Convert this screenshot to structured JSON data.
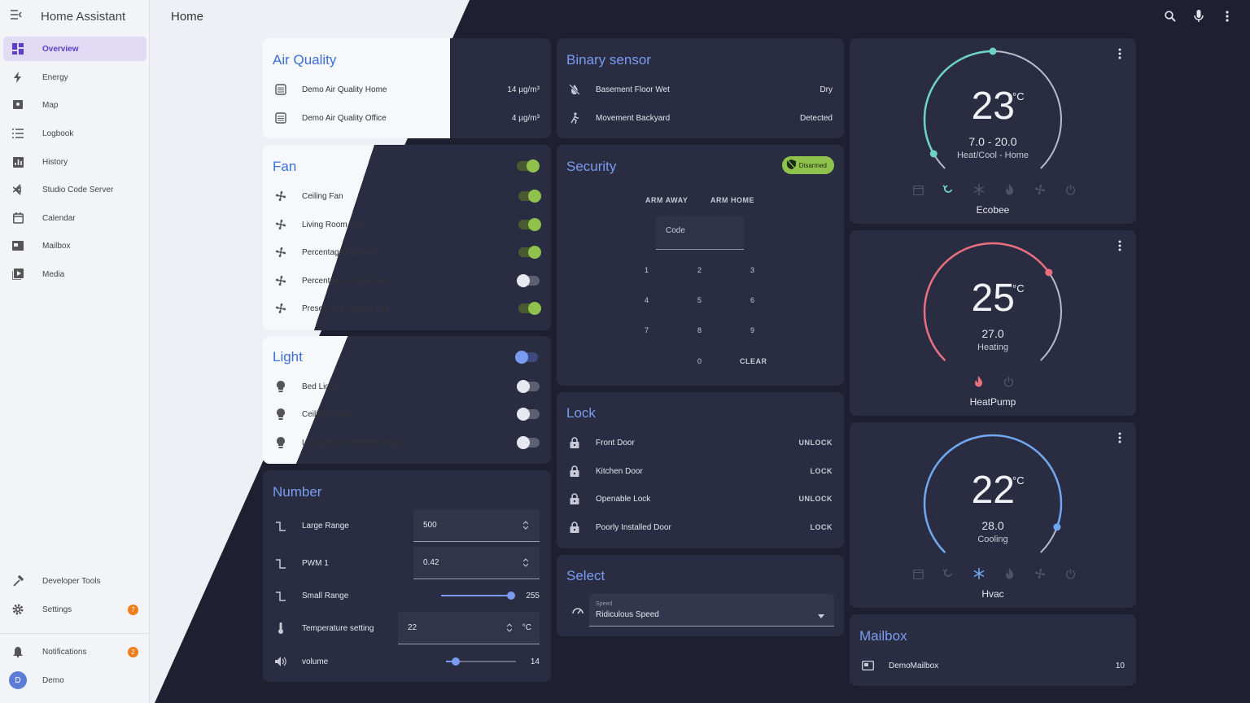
{
  "app": {
    "title": "Home Assistant",
    "page_title": "Home"
  },
  "sidebar": {
    "items": [
      {
        "label": "Overview",
        "icon": "overview-icon"
      },
      {
        "label": "Energy",
        "icon": "energy-icon"
      },
      {
        "label": "Map",
        "icon": "map-icon"
      },
      {
        "label": "Logbook",
        "icon": "logbook-icon"
      },
      {
        "label": "History",
        "icon": "history-icon"
      },
      {
        "label": "Studio Code Server",
        "icon": "vscode-icon"
      },
      {
        "label": "Calendar",
        "icon": "calendar-icon"
      },
      {
        "label": "Mailbox",
        "icon": "mailbox-icon"
      },
      {
        "label": "Media",
        "icon": "media-icon"
      }
    ],
    "developer_tools": "Developer Tools",
    "settings": {
      "label": "Settings",
      "badge": "7"
    },
    "notifications": {
      "label": "Notifications",
      "badge": "2"
    },
    "user": {
      "label": "Demo",
      "initial": "D"
    }
  },
  "air_quality": {
    "title": "Air Quality",
    "rows": [
      {
        "name": "Demo Air Quality Home",
        "value": "14 µg/m³"
      },
      {
        "name": "Demo Air Quality Office",
        "value": "4 µg/m³"
      }
    ]
  },
  "fan": {
    "title": "Fan",
    "rows": [
      {
        "name": "Ceiling Fan",
        "on": true
      },
      {
        "name": "Living Room Fan",
        "on": true
      },
      {
        "name": "Percentage Full Fan",
        "on": true
      },
      {
        "name": "Percentage Limited Fan",
        "on": false
      },
      {
        "name": "Preset Only Limited Fan",
        "on": true
      }
    ]
  },
  "light": {
    "title": "Light",
    "rows": [
      {
        "name": "Bed Light",
        "on": false
      },
      {
        "name": "Ceiling Lights",
        "on": false
      },
      {
        "name": "Living Room RGBWW Lights",
        "on": false
      }
    ]
  },
  "number": {
    "title": "Number",
    "rows": [
      {
        "name": "Large Range",
        "value": "500"
      },
      {
        "name": "PWM 1",
        "value": "0.42"
      },
      {
        "name": "Small Range",
        "value": "255",
        "level": 1.0
      },
      {
        "name": "Temperature setting",
        "value": "22",
        "unit": "°C"
      },
      {
        "name": "volume",
        "value": "14",
        "level": 0.14
      }
    ]
  },
  "binary_sensor": {
    "title": "Binary sensor",
    "rows": [
      {
        "name": "Basement Floor Wet",
        "value": "Dry"
      },
      {
        "name": "Movement Backyard",
        "value": "Detected"
      }
    ]
  },
  "security": {
    "title": "Security",
    "status": "Disarmed",
    "arm_away": "ARM AWAY",
    "arm_home": "ARM HOME",
    "code_placeholder": "Code",
    "keys": [
      "1",
      "2",
      "3",
      "4",
      "5",
      "6",
      "7",
      "8",
      "9",
      "0"
    ],
    "clear": "CLEAR"
  },
  "lock": {
    "title": "Lock",
    "rows": [
      {
        "name": "Front Door",
        "action": "UNLOCK"
      },
      {
        "name": "Kitchen Door",
        "action": "LOCK"
      },
      {
        "name": "Openable Lock",
        "action": "UNLOCK"
      },
      {
        "name": "Poorly Installed Door",
        "action": "LOCK"
      }
    ]
  },
  "select": {
    "title": "Select",
    "label": "Speed",
    "value": "Ridiculous Speed"
  },
  "thermostats": [
    {
      "name": "Ecobee",
      "temp": "23",
      "unit": "°C",
      "range": "7.0 - 20.0",
      "mode": "Heat/Cool - Home",
      "accent": "#6fd2c8"
    },
    {
      "name": "HeatPump",
      "temp": "25",
      "unit": "°C",
      "range": "27.0",
      "mode": "Heating",
      "accent": "#e8707e"
    },
    {
      "name": "Hvac",
      "temp": "22",
      "unit": "°C",
      "range": "28.0",
      "mode": "Cooling",
      "accent": "#6fa8f0"
    }
  ],
  "mailbox": {
    "title": "Mailbox",
    "rows": [
      {
        "name": "DemoMailbox",
        "value": "10"
      }
    ]
  },
  "colors": {
    "accent": "#7a9cf0",
    "toggle_on": "#8ec24c",
    "badge": "#f07d18",
    "active_nav": "#5b3fc6"
  }
}
